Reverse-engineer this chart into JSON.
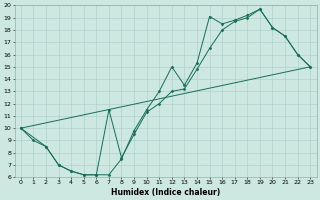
{
  "xlabel": "Humidex (Indice chaleur)",
  "xlim": [
    -0.5,
    23.5
  ],
  "ylim": [
    6,
    20
  ],
  "xticks": [
    0,
    1,
    2,
    3,
    4,
    5,
    6,
    7,
    8,
    9,
    10,
    11,
    12,
    13,
    14,
    15,
    16,
    17,
    18,
    19,
    20,
    21,
    22,
    23
  ],
  "yticks": [
    6,
    7,
    8,
    9,
    10,
    11,
    12,
    13,
    14,
    15,
    16,
    17,
    18,
    19,
    20
  ],
  "background_color": "#cce8e0",
  "grid_color": "#aacccc",
  "line_color": "#1a6b5a",
  "line1_x": [
    0,
    1,
    2,
    3,
    4,
    5,
    6,
    7,
    8,
    9,
    10,
    11,
    12,
    13,
    14,
    15,
    16,
    17,
    18,
    19,
    20,
    21,
    22,
    23
  ],
  "line1_y": [
    10,
    9,
    8.5,
    7,
    6.5,
    6.2,
    6.2,
    6.2,
    7.5,
    9.8,
    11.5,
    13.0,
    15.0,
    13.5,
    15.3,
    19.1,
    18.5,
    18.8,
    19.2,
    19.7,
    18.2,
    17.5,
    16.0,
    15.0
  ],
  "line2_x": [
    0,
    2,
    3,
    4,
    5,
    6,
    7,
    8,
    9,
    10,
    11,
    12,
    13,
    14,
    15,
    16,
    17,
    18,
    19,
    20,
    21,
    22,
    23
  ],
  "line2_y": [
    10,
    8.5,
    7,
    6.5,
    6.2,
    6.2,
    11.5,
    7.6,
    9.5,
    11.3,
    12.0,
    13.0,
    13.2,
    14.8,
    16.5,
    18.0,
    18.7,
    19.0,
    19.7,
    18.2,
    17.5,
    16.0,
    15.0
  ],
  "line3_x": [
    0,
    23
  ],
  "line3_y": [
    10,
    15.0
  ]
}
